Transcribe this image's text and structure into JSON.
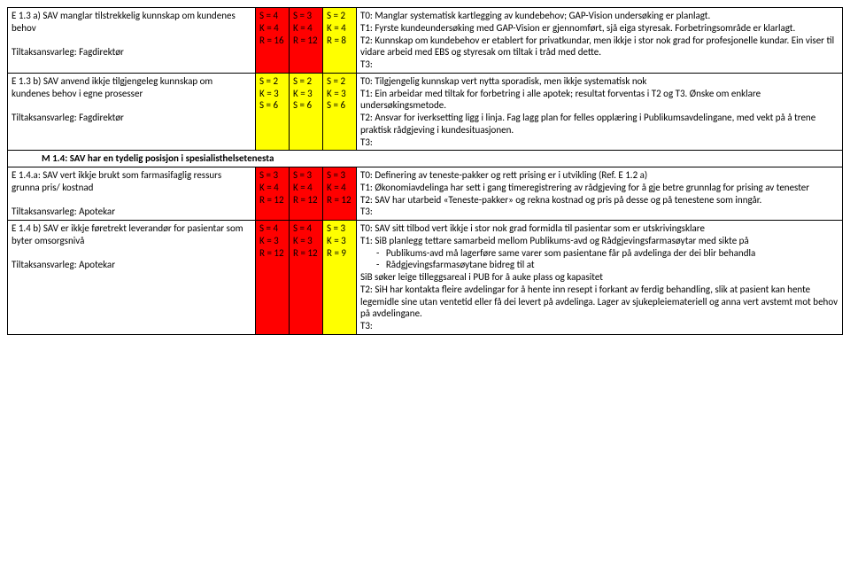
{
  "rows": [
    {
      "desc": "E 1.3 a) SAV manglar tilstrekkelig kunnskap om kundenes behov\n\nTiltaksansvarleg: Fagdirektør",
      "c1": {
        "s": "S = 4",
        "k": "K = 4",
        "r": "R = 16",
        "bg": "#ff0000"
      },
      "c2": {
        "s": "S = 3",
        "k": "K = 4",
        "r": "R = 12",
        "bg": "#ff0000"
      },
      "c3": {
        "s": "S = 2",
        "k": "K = 4",
        "r": "R = 8",
        "bg": "#ffff00"
      },
      "comment": "T0: Manglar systematisk kartlegging av kundebehov; GAP-Vision undersøking er planlagt.\nT1: Fyrste kundeundersøking med GAP-Vision er gjennomført, sjå eiga styresak. Forbetringsområde er klarlagt.\nT2: Kunnskap om kundebehov er etablert for privatkundar, men ikkje i stor nok grad for profesjonelle kundar. Ein viser til vidare arbeid med EBS og styresak om tiltak i tråd med dette.\nT3:"
    },
    {
      "desc": "E 1.3 b) SAV anvend ikkje tilgjengeleg kunnskap om kundenes behov i egne prosesser\n\nTiltaksansvarleg: Fagdirektør",
      "c1": {
        "s": "S = 2",
        "k": "K = 3",
        "r": "S = 6",
        "bg": "#ffff00"
      },
      "c2": {
        "s": "S = 2",
        "k": "K = 3",
        "r": "S = 6",
        "bg": "#ffff00"
      },
      "c3": {
        "s": "S = 2",
        "k": "K = 3",
        "r": "S = 6",
        "bg": "#ffff00"
      },
      "comment": "T0: Tilgjengelig kunnskap vert nytta sporadisk, men ikkje systematisk nok\nT1: Ein arbeidar med tiltak for forbetring i alle apotek; resultat forventas i T2 og T3. Ønske om enklare undersøkingsmetode.\nT2: Ansvar for iverksetting ligg i linja. Fag lagg plan for felles opplæring i Publikumsavdelingane, med vekt på å trene praktisk rådgjeving i kundesituasjonen.\nT3:"
    }
  ],
  "sectionHeader": "M 1.4: SAV har en tydelig posisjon i spesialisthelsetenesta",
  "rows2": [
    {
      "desc": "E 1.4.a: SAV vert ikkje brukt som farmasifaglig ressurs grunna pris/ kostnad\n\nTiltaksansvarleg: Apotekar",
      "c1": {
        "s": "S = 3",
        "k": "K = 4",
        "r": "R = 12",
        "bg": "#ff0000"
      },
      "c2": {
        "s": "S = 3",
        "k": "K = 4",
        "r": "R = 12",
        "bg": "#ff0000"
      },
      "c3": {
        "s": "S = 3",
        "k": "K = 4",
        "r": "R = 12",
        "bg": "#ff0000"
      },
      "comment": "T0: Definering av teneste-pakker og rett prising er i utvikling (Ref. E 1.2 a)\nT1: Økonomiavdelinga har sett i gang timeregistrering av rådgjeving for å gje betre grunnlag for prising av tenester\nT2: SAV har utarbeid «Teneste-pakker» og rekna kostnad og pris på desse og på tenestene som inngår.\nT3:"
    },
    {
      "desc": "E 1.4 b) SAV er ikkje føretrekt leverandør for pasientar som byter omsorgsnivå\n\nTiltaksansvarleg: Apotekar",
      "c1": {
        "s": "S = 4",
        "k": "K = 3",
        "r": "R = 12",
        "bg": "#ff0000"
      },
      "c2": {
        "s": "S = 4",
        "k": "K = 3",
        "r": "R = 12",
        "bg": "#ff0000"
      },
      "c3": {
        "s": "S = 3",
        "k": "K = 3",
        "r": "R = 9",
        "bg": "#ffff00"
      },
      "comment_before": "T0: SAV sitt tilbod vert ikkje i stor nok grad formidla til pasientar som er utskrivingsklare\nT1: SiB planlegg tettare samarbeid mellom Publikums-avd og Rådgjevingsfarmasøytar med sikte på",
      "bullets": [
        "Publikums-avd må lagerføre same varer som pasientane får på avdelinga der dei blir behandla",
        "Rådgjevingsfarmasøytane bidreg til at"
      ],
      "comment_after": "SiB søker leige tilleggsareal i PUB for å auke plass og kapasitet\nT2: SiH har kontakta fleire avdelingar for å hente inn resept i forkant av ferdig behandling, slik at pasient kan hente legemidle sine utan ventetid eller få dei levert på avdelinga. Lager av sjukepleiemateriell og anna vert avstemt mot behov på avdelingane.\nT3:"
    }
  ]
}
